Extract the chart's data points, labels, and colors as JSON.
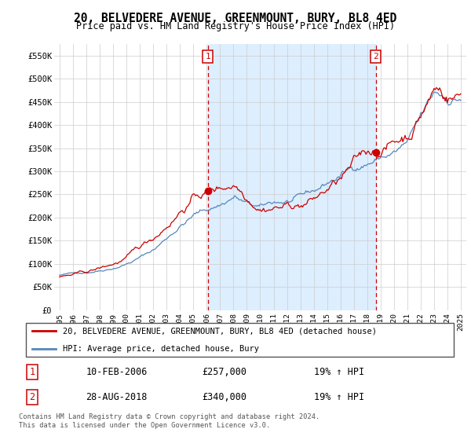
{
  "title": "20, BELVEDERE AVENUE, GREENMOUNT, BURY, BL8 4ED",
  "subtitle": "Price paid vs. HM Land Registry's House Price Index (HPI)",
  "legend_line1": "20, BELVEDERE AVENUE, GREENMOUNT, BURY, BL8 4ED (detached house)",
  "legend_line2": "HPI: Average price, detached house, Bury",
  "footnote": "Contains HM Land Registry data © Crown copyright and database right 2024.\nThis data is licensed under the Open Government Licence v3.0.",
  "sale1_label": "1",
  "sale1_date": "10-FEB-2006",
  "sale1_price": "£257,000",
  "sale1_hpi": "19% ↑ HPI",
  "sale2_label": "2",
  "sale2_date": "28-AUG-2018",
  "sale2_price": "£340,000",
  "sale2_hpi": "19% ↑ HPI",
  "red_color": "#cc0000",
  "blue_color": "#5588bb",
  "shade_color": "#ddeeff",
  "marker1_x": 2006.08,
  "marker1_y": 257000,
  "marker2_x": 2018.65,
  "marker2_y": 340000,
  "ylim": [
    0,
    575000
  ],
  "xlim_start": 1994.6,
  "xlim_end": 2025.4,
  "bg_color": "#f0f4f8"
}
